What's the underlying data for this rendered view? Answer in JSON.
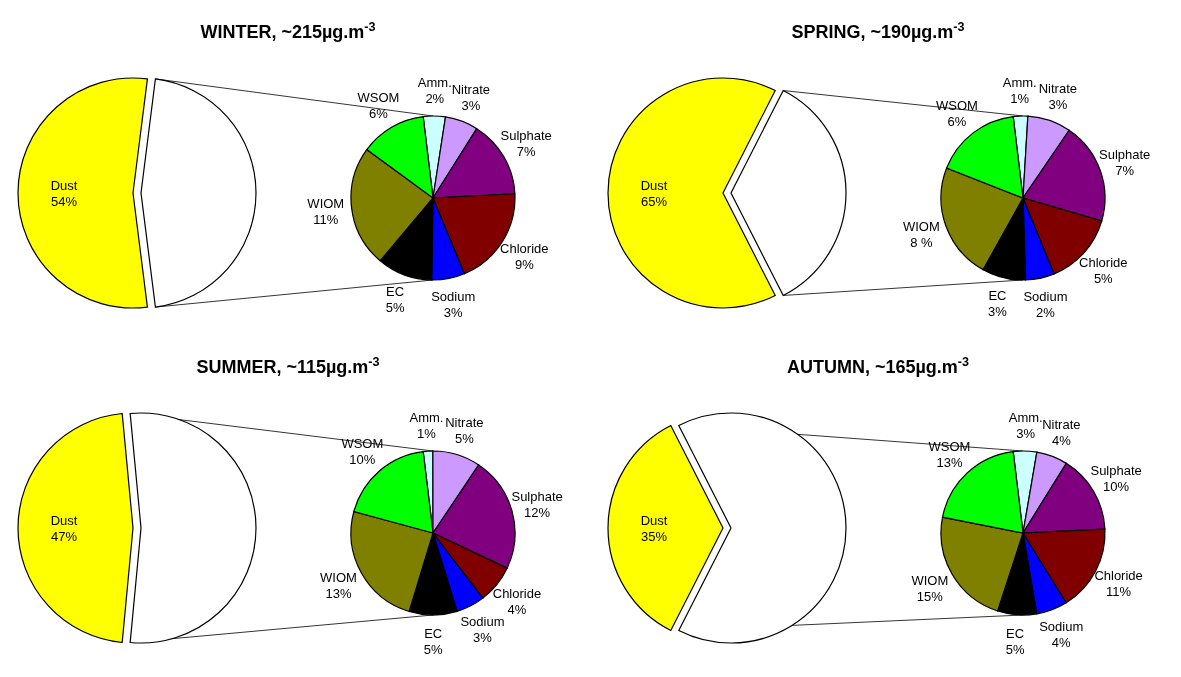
{
  "chart_data": [
    {
      "type": "pie",
      "title": "WINTER, ~215µg.m$^{-3}$",
      "categories": [
        "Dust",
        null
      ],
      "values": [
        54,
        46
      ],
      "value_labels": [
        "54%",
        null
      ],
      "colors": [
        "#ffff00",
        "#ffffff"
      ]
    },
    {
      "type": "pie",
      "categories": [
        "Amm.",
        "Nitrate",
        "Sulphate",
        "Chloride",
        "Sodium",
        "EC",
        "WIOM",
        "WSOM"
      ],
      "values": [
        2,
        3,
        7,
        9,
        3,
        5,
        11,
        6
      ],
      "value_labels": [
        "2%",
        "3%",
        "7%",
        "9%",
        "3%",
        "5%",
        "11%",
        "6%"
      ],
      "colors": [
        "#ccffff",
        "#cc99ff",
        "#800080",
        "#800000",
        "#0000ff",
        "#000000",
        "#808000",
        "#00ff00"
      ]
    },
    {
      "type": "pie",
      "title": "SPRING, ~190µg.m$^{-3}$",
      "categories": [
        "Dust",
        null
      ],
      "values": [
        65,
        35
      ],
      "value_labels": [
        "65%",
        null
      ],
      "colors": [
        "#ffff00",
        "#ffffff"
      ]
    },
    {
      "type": "pie",
      "categories": [
        "Amm.",
        "Nitrate",
        "Sulphate",
        "Chloride",
        "Sodium",
        "EC",
        "WIOM",
        "WSOM"
      ],
      "values": [
        1,
        3,
        7,
        5,
        2,
        3,
        8,
        6
      ],
      "value_labels": [
        "1%",
        "3%",
        "7%",
        "5%",
        "2%",
        "3%",
        "8 %",
        "6%"
      ],
      "colors": [
        "#ccffff",
        "#cc99ff",
        "#800080",
        "#800000",
        "#0000ff",
        "#000000",
        "#808000",
        "#00ff00"
      ]
    },
    {
      "type": "pie",
      "title": "SUMMER, ~115µg.m$^{-3}$",
      "categories": [
        "Dust",
        null
      ],
      "values": [
        47,
        53
      ],
      "value_labels": [
        "47%",
        null
      ],
      "colors": [
        "#ffff00",
        "#ffffff"
      ]
    },
    {
      "type": "pie",
      "categories": [
        "Amm.",
        "Nitrate",
        "Sulphate",
        "Chloride",
        "Sodium",
        "EC",
        "WIOM",
        "WSOM"
      ],
      "values": [
        1,
        5,
        12,
        4,
        3,
        5,
        13,
        10
      ],
      "value_labels": [
        "1%",
        "5%",
        "12%",
        "4%",
        "3%",
        "5%",
        "13%",
        "10%"
      ],
      "colors": [
        "#ccffff",
        "#cc99ff",
        "#800080",
        "#800000",
        "#0000ff",
        "#000000",
        "#808000",
        "#00ff00"
      ]
    },
    {
      "type": "pie",
      "title": "AUTUMN, ~165µg.m$^{-3}$",
      "categories": [
        "Dust",
        null
      ],
      "values": [
        35,
        65
      ],
      "value_labels": [
        "35%",
        null
      ],
      "colors": [
        "#ffff00",
        "#ffffff"
      ]
    },
    {
      "type": "pie",
      "categories": [
        "Amm.",
        "Nitrate",
        "Sulphate",
        "Chloride",
        "Sodium",
        "EC",
        "WIOM",
        "WSOM"
      ],
      "values": [
        3,
        4,
        10,
        11,
        4,
        5,
        15,
        13
      ],
      "value_labels": [
        "3%",
        "4%",
        "10%",
        "11%",
        "4%",
        "5%",
        "15%",
        "13%"
      ],
      "colors": [
        "#ccffff",
        "#cc99ff",
        "#800080",
        "#800000",
        "#0000ff",
        "#000000",
        "#808000",
        "#00ff00"
      ]
    }
  ]
}
